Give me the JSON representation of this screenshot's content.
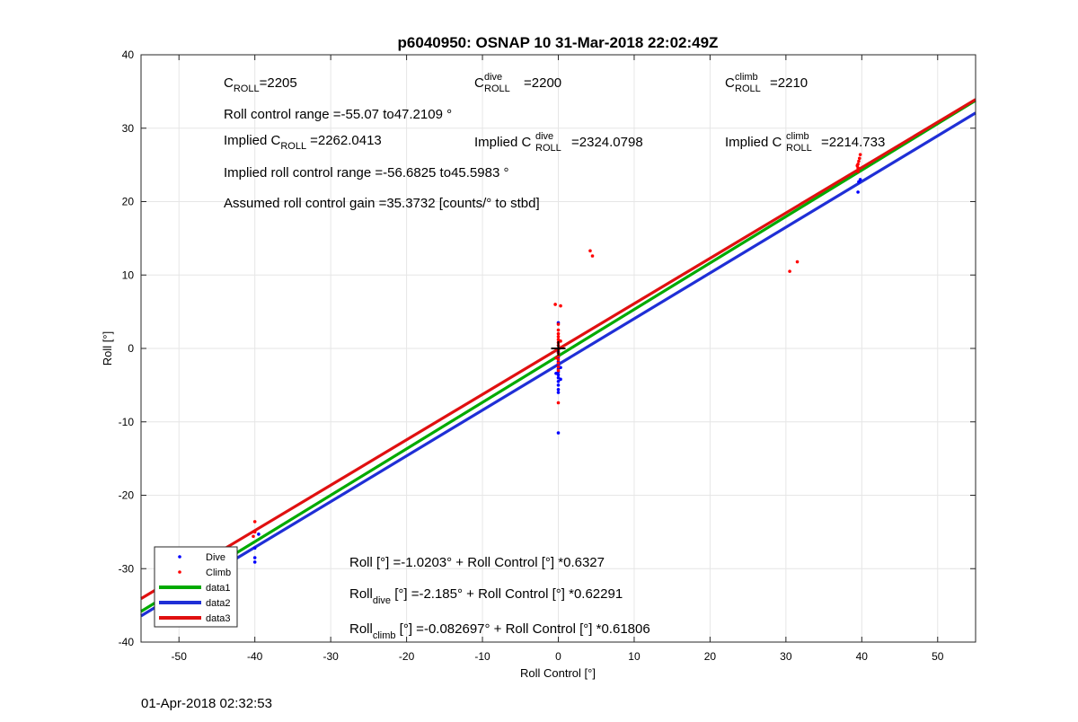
{
  "footer": {
    "timestamp": "01-Apr-2018 02:32:53"
  },
  "colors": {
    "dive": "#0000ff",
    "climb": "#ff0000",
    "data1": "#00aa00",
    "data2": "#1f2fd6",
    "data3": "#e01010"
  },
  "chart_data": {
    "type": "scatter",
    "title": "p6040950: OSNAP 10 31-Mar-2018 22:02:49Z",
    "xlabel": "Roll Control [°]",
    "ylabel": "Roll [°]",
    "xlim": [
      -55,
      55
    ],
    "ylim": [
      -40,
      40
    ],
    "xticks": [
      -50,
      -40,
      -30,
      -20,
      -10,
      0,
      10,
      20,
      30,
      40,
      50
    ],
    "yticks": [
      -40,
      -30,
      -20,
      -10,
      0,
      10,
      20,
      30,
      40
    ],
    "grid": true,
    "legend_position": "bottom-left",
    "legend": [
      "Dive",
      "Climb",
      "data1",
      "data2",
      "data3"
    ],
    "annotations": {
      "c_roll": {
        "label": "C",
        "sub": "ROLL",
        "value": "=2205"
      },
      "c_roll_dive": {
        "label": "C",
        "sup": "dive",
        "sub": "ROLL",
        "value": "=2200"
      },
      "c_roll_climb": {
        "label": "C",
        "sup": "climb",
        "sub": "ROLL",
        "value": "=2210"
      },
      "roll_range": "Roll control range =-55.07 to47.2109 °",
      "implied_c_roll": {
        "label": "Implied C",
        "sub": "ROLL",
        "value": "=2262.0413"
      },
      "implied_c_roll_dive": {
        "label": "Implied C",
        "sup": "dive",
        "sub": "ROLL",
        "value": "=2324.0798"
      },
      "implied_c_roll_climb": {
        "label": "Implied C",
        "sup": "climb",
        "sub": "ROLL",
        "value": "=2214.733"
      },
      "implied_range": "Implied roll control range =-56.6825 to45.5983 °",
      "gain": "Assumed roll control gain =35.3732 [counts/° to stbd]",
      "fit_all": "Roll [°] =-1.0203° + Roll Control [°] *0.6327",
      "fit_dive": {
        "label": "Roll",
        "sub": "dive",
        "rest": " [°] =-2.185° + Roll Control [°] *0.62291"
      },
      "fit_climb": {
        "label": "Roll",
        "sub": "climb",
        "rest": " [°] =-0.082697° + Roll Control [°] *0.61806"
      }
    },
    "series": [
      {
        "name": "Dive",
        "kind": "points",
        "points": [
          [
            -50,
            -29
          ],
          [
            -40,
            -27.2
          ],
          [
            -40,
            -28.5
          ],
          [
            -40,
            -29.1
          ],
          [
            -39.5,
            -25.3
          ],
          [
            0,
            3.5
          ],
          [
            0,
            -0.5
          ],
          [
            0,
            -1.2
          ],
          [
            0,
            -1.8
          ],
          [
            0,
            -2.3
          ],
          [
            0,
            -2.8
          ],
          [
            0,
            -3.2
          ],
          [
            0,
            -3.6
          ],
          [
            0,
            -4.0
          ],
          [
            0,
            -4.5
          ],
          [
            0,
            -5.0
          ],
          [
            0,
            -5.6
          ],
          [
            0,
            -6.0
          ],
          [
            0.3,
            -2.6
          ],
          [
            -0.3,
            -3.4
          ],
          [
            0.3,
            -4.2
          ],
          [
            0,
            -11.5
          ],
          [
            39.5,
            21.3
          ],
          [
            39.6,
            22.7
          ],
          [
            39.8,
            23.0
          ]
        ]
      },
      {
        "name": "Climb",
        "kind": "points",
        "points": [
          [
            -40,
            -23.6
          ],
          [
            -40,
            -25.0
          ],
          [
            -40.2,
            -25.6
          ],
          [
            -0.4,
            6.0
          ],
          [
            0.3,
            5.8
          ],
          [
            0,
            3.3
          ],
          [
            0,
            2.5
          ],
          [
            0,
            2.0
          ],
          [
            0,
            1.6
          ],
          [
            0,
            1.2
          ],
          [
            0,
            0.8
          ],
          [
            0,
            0.4
          ],
          [
            0,
            -0.2
          ],
          [
            0,
            -0.6
          ],
          [
            0,
            -1.0
          ],
          [
            0,
            -1.5
          ],
          [
            0,
            -2.0
          ],
          [
            0,
            -2.5
          ],
          [
            0,
            -3.0
          ],
          [
            0.3,
            1.0
          ],
          [
            -0.3,
            -1.3
          ],
          [
            0,
            -7.4
          ],
          [
            4.2,
            13.3
          ],
          [
            4.5,
            12.6
          ],
          [
            30.5,
            10.5
          ],
          [
            31.5,
            11.8
          ],
          [
            39.5,
            24.1
          ],
          [
            39.5,
            24.6
          ],
          [
            39.5,
            25.1
          ],
          [
            39.6,
            25.5
          ],
          [
            39.7,
            25.9
          ],
          [
            39.8,
            26.4
          ],
          [
            39.4,
            24.9
          ]
        ]
      },
      {
        "name": "data1",
        "kind": "line",
        "points": [
          [
            -55,
            -35.82
          ],
          [
            55,
            33.78
          ]
        ]
      },
      {
        "name": "data2",
        "kind": "line",
        "points": [
          [
            -55,
            -36.44
          ],
          [
            55,
            32.08
          ]
        ]
      },
      {
        "name": "data3",
        "kind": "line",
        "points": [
          [
            -55,
            -34.08
          ],
          [
            55,
            33.91
          ]
        ]
      },
      {
        "name": "",
        "kind": "marker",
        "points": [
          [
            0,
            0
          ]
        ]
      }
    ]
  }
}
